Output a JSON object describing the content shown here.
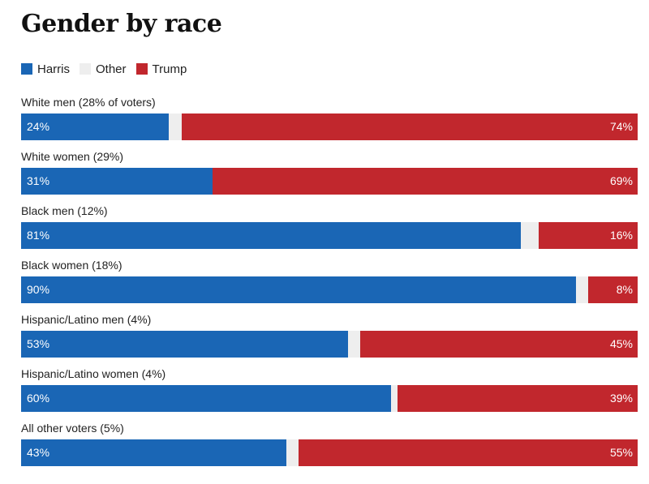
{
  "title": "Gender by race",
  "legend": [
    {
      "label": "Harris",
      "color": "#1a66b5"
    },
    {
      "label": "Other",
      "color": "#eeeeee"
    },
    {
      "label": "Trump",
      "color": "#c1272d"
    }
  ],
  "colors": {
    "harris": "#1a66b5",
    "other": "#eeeeee",
    "trump": "#c1272d"
  },
  "chart_data": {
    "type": "bar",
    "orientation": "horizontal",
    "stacked": true,
    "categories": [
      "White men (28% of voters)",
      "White women (29%)",
      "Black men (12%)",
      "Black women (18%)",
      "Hispanic/Latino men (4%)",
      "Hispanic/Latino women (4%)",
      "All other voters (5%)"
    ],
    "series": [
      {
        "name": "Harris",
        "values": [
          24,
          31,
          81,
          90,
          53,
          60,
          43
        ]
      },
      {
        "name": "Trump",
        "values": [
          74,
          69,
          16,
          8,
          45,
          39,
          55
        ]
      }
    ],
    "value_labels": {
      "harris": [
        "24%",
        "31%",
        "81%",
        "90%",
        "53%",
        "60%",
        "43%"
      ],
      "trump": [
        "74%",
        "69%",
        "16%",
        "8%",
        "45%",
        "39%",
        "55%"
      ]
    },
    "xlim": [
      0,
      100
    ],
    "grid": false,
    "legend_position": "top-left"
  }
}
